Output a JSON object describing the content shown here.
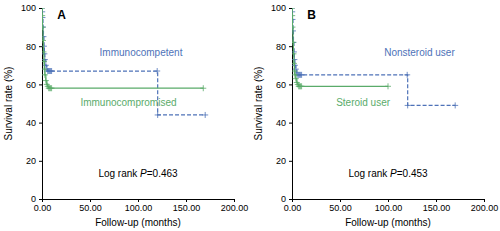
{
  "chart_data": [
    {
      "type": "step",
      "title": "A",
      "x_label": "Follow-up (months)",
      "y_label": "Survival rate (%)",
      "annotations": [
        "Log rank ",
        "P",
        "=0.463"
      ],
      "xlim": [
        0,
        200
      ],
      "ylim": [
        0,
        100
      ],
      "xticks": [
        {
          "value": 0.0,
          "label": "0.00"
        },
        {
          "value": 50.0,
          "label": "50.00"
        },
        {
          "value": 100.0,
          "label": "100.00"
        },
        {
          "value": 150.0,
          "label": "150.00"
        },
        {
          "value": 200.0,
          "label": "200.00"
        }
      ],
      "yticks": [
        0,
        20,
        40,
        60,
        80,
        100
      ],
      "series": [
        {
          "name": "Immunocompetent",
          "color": "#4e72b8",
          "line_style": "dashed",
          "marker": "+",
          "x": [
            0,
            0.2,
            0.5,
            1,
            1.5,
            2,
            2.5,
            3,
            4,
            5,
            6,
            7,
            8,
            9,
            10,
            120,
            120.5,
            170
          ],
          "values": [
            100,
            98,
            95,
            90,
            85,
            80,
            76,
            73,
            70,
            68,
            67,
            67,
            67,
            67,
            67,
            67,
            44,
            44
          ]
        },
        {
          "name": "Immunocompromised",
          "color": "#5aab6a",
          "line_style": "solid",
          "marker": "+",
          "x": [
            0,
            0.2,
            0.5,
            1,
            1.5,
            2,
            2.5,
            3,
            4,
            5,
            6,
            7,
            8,
            9,
            10,
            168
          ],
          "values": [
            100,
            96,
            90,
            83,
            77,
            72,
            68,
            65,
            62,
            60,
            59,
            58,
            58,
            58,
            58,
            58
          ]
        }
      ]
    },
    {
      "type": "step",
      "title": "B",
      "x_label": "Follow-up (months)",
      "y_label": "Survival rate (%)",
      "annotations": [
        "Log rank ",
        "P",
        "=0.453"
      ],
      "xlim": [
        0,
        200
      ],
      "ylim": [
        0,
        100
      ],
      "xticks": [
        {
          "value": 0.0,
          "label": "0.00"
        },
        {
          "value": 50.0,
          "label": "50.00"
        },
        {
          "value": 100.0,
          "label": "100.00"
        },
        {
          "value": 150.0,
          "label": "150.00"
        },
        {
          "value": 200.0,
          "label": "200.00"
        }
      ],
      "yticks": [
        0,
        20,
        40,
        60,
        80,
        100
      ],
      "series": [
        {
          "name": "Nonsteroid user",
          "color": "#4e72b8",
          "line_style": "dashed",
          "marker": "+",
          "x": [
            0,
            0.2,
            0.5,
            1,
            1.5,
            2,
            2.5,
            3,
            4,
            5,
            6,
            7,
            8,
            9,
            10,
            120,
            120.5,
            170
          ],
          "values": [
            100,
            98,
            94,
            88,
            82,
            77,
            73,
            70,
            68,
            66,
            65,
            65,
            65,
            65,
            65,
            65,
            49,
            49
          ]
        },
        {
          "name": "Steroid user",
          "color": "#5aab6a",
          "line_style": "solid",
          "marker": "+",
          "x": [
            0,
            0.2,
            0.5,
            1,
            1.5,
            2,
            2.5,
            3,
            4,
            5,
            6,
            7,
            8,
            9,
            10,
            100
          ],
          "values": [
            100,
            96,
            90,
            82,
            76,
            71,
            67,
            65,
            63,
            61,
            60,
            59,
            59,
            59,
            59,
            59
          ]
        }
      ]
    }
  ]
}
